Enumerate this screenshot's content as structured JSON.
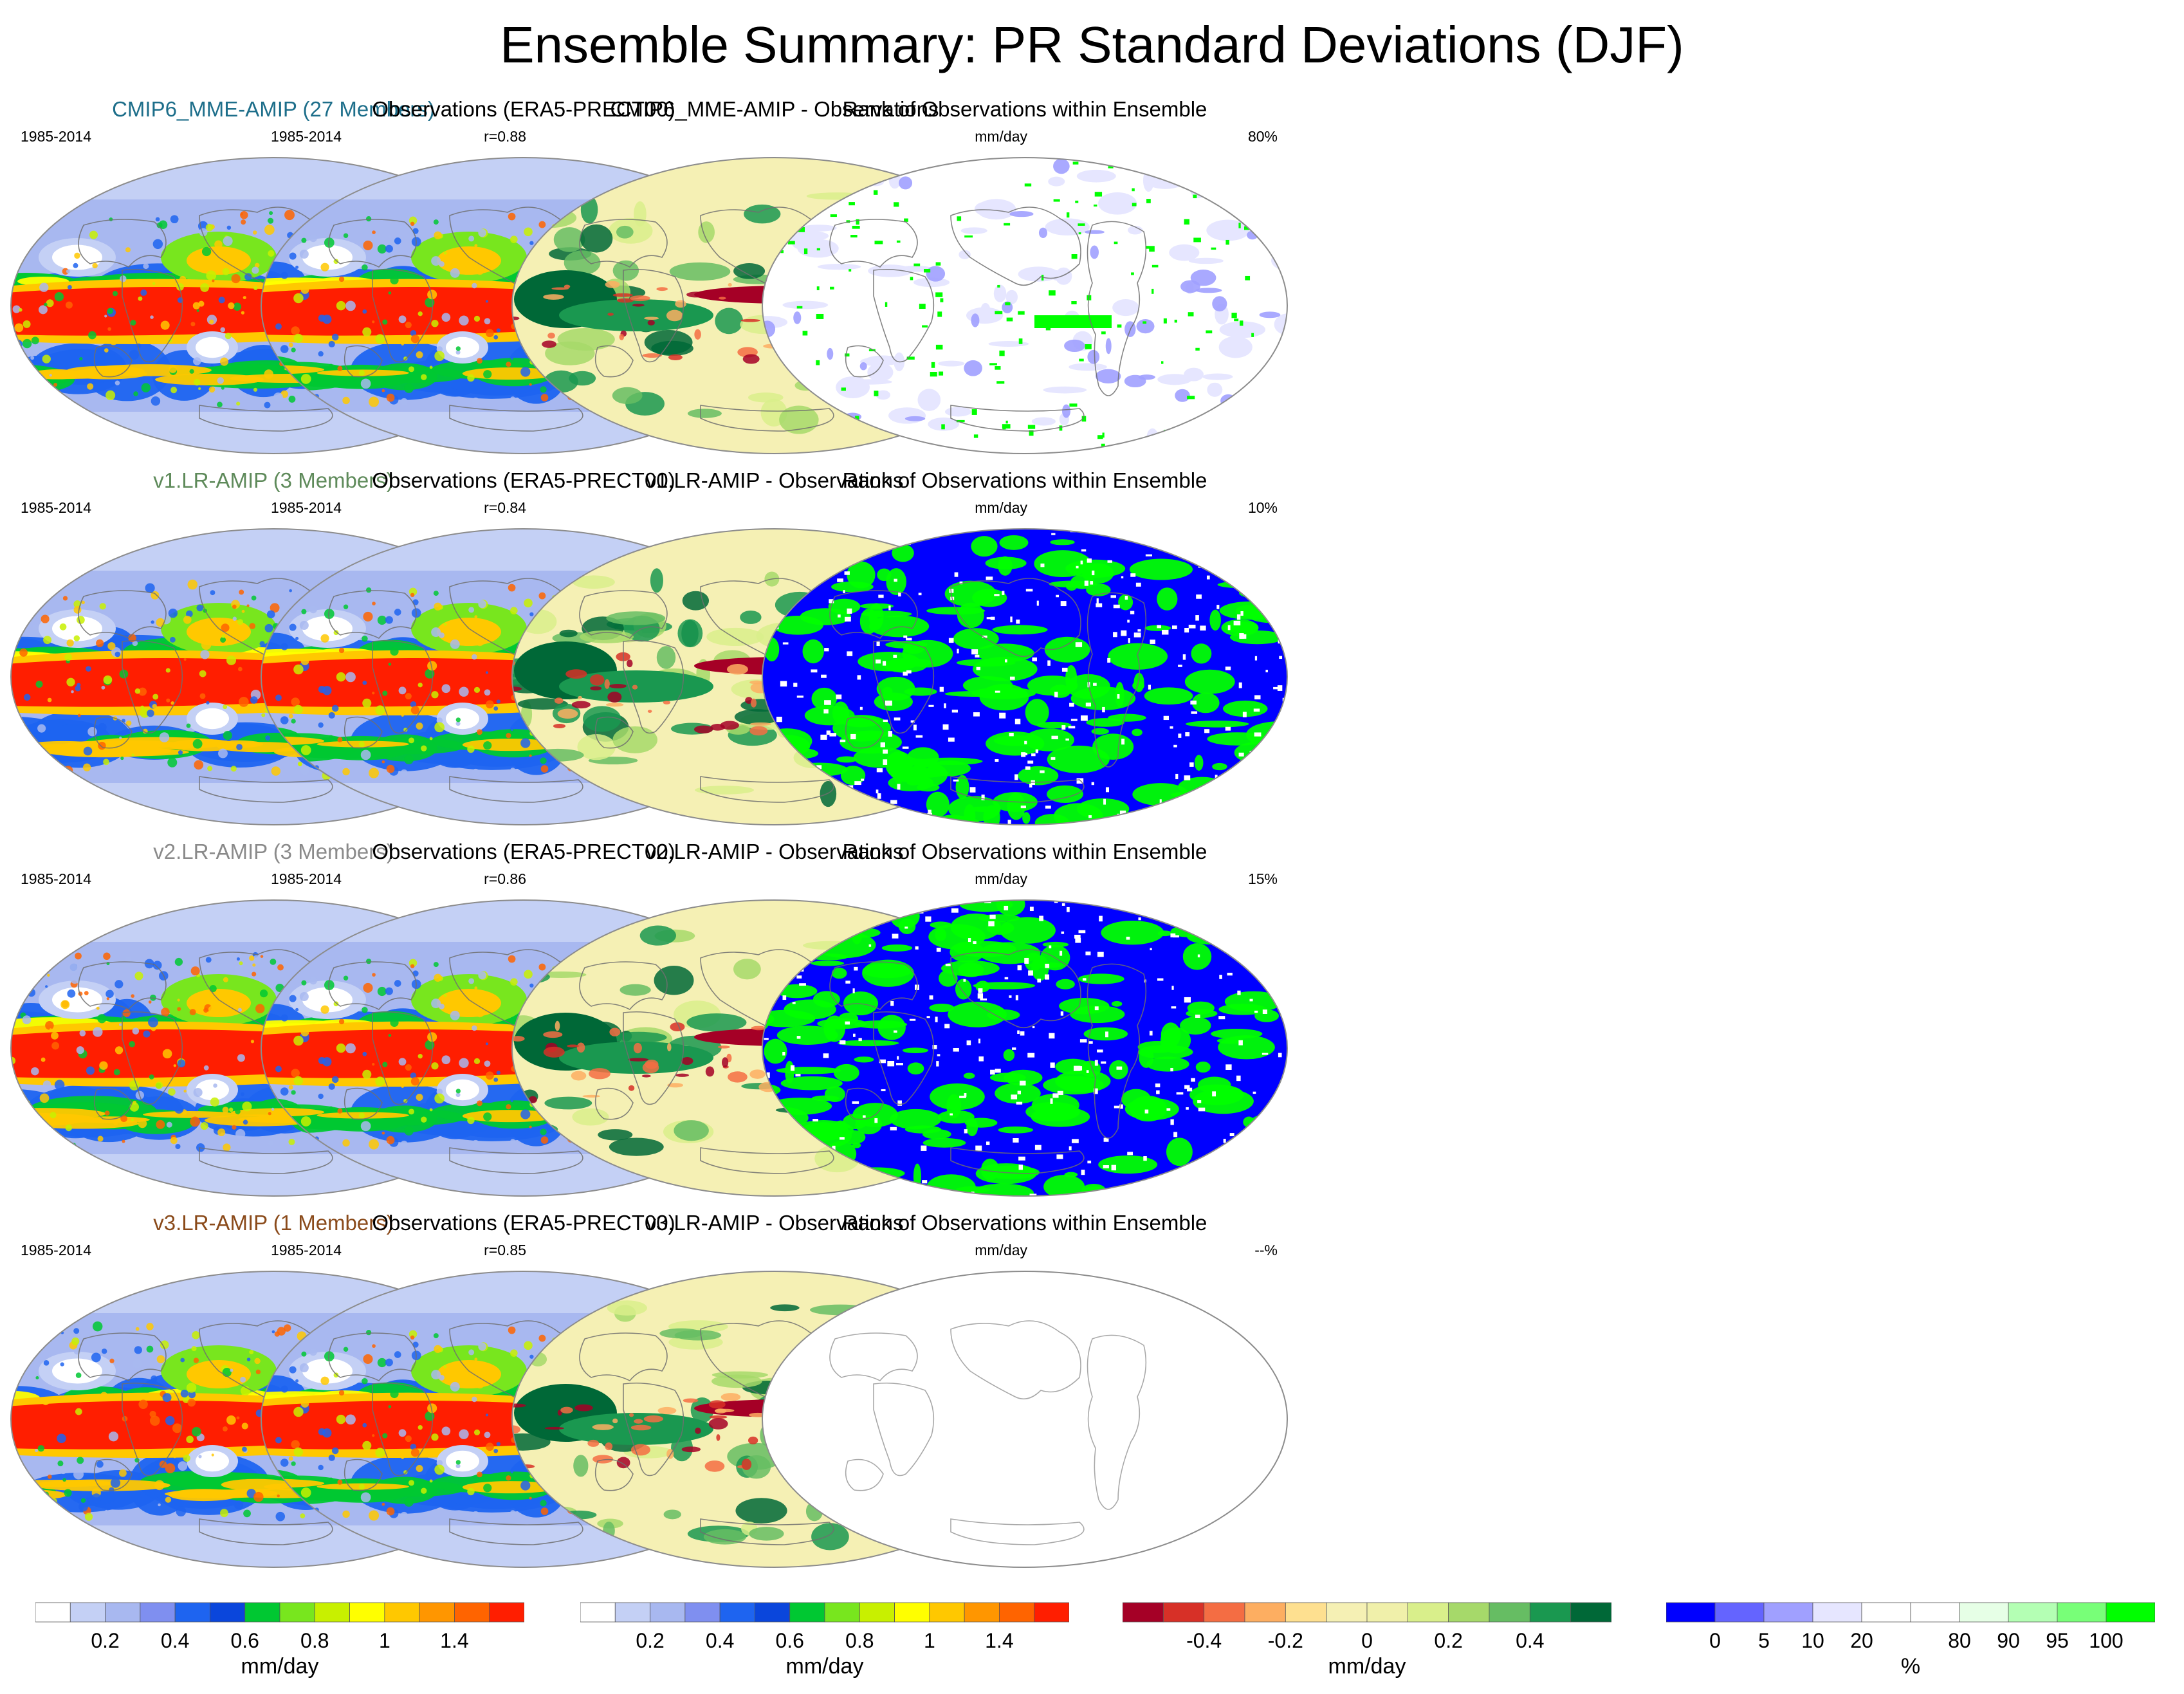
{
  "title": "Ensemble Summary: PR Standard Deviations (DJF)",
  "colors": {
    "cmip6": "#1d6e8a",
    "v1": "#5e8a5a",
    "v2": "#8a8a8a",
    "v3": "#8a4a1a"
  },
  "rows": [
    {
      "model": {
        "title": "CMIP6_MME-AMIP (27 Members)",
        "color_key": "cmip6",
        "period": "1985-2014",
        "corr": "r=0.88"
      },
      "obs": {
        "title": "Observations (ERA5-PRECT00)",
        "period": "1985-2014"
      },
      "diff": {
        "title": "CMIP6_MME-AMIP - Observations",
        "units": "mm/day"
      },
      "rank": {
        "title": "Rank of Observations within Ensemble",
        "percent": "80%",
        "style": "sparse"
      }
    },
    {
      "model": {
        "title": "v1.LR-AMIP (3 Members)",
        "color_key": "v1",
        "period": "1985-2014",
        "corr": "r=0.84"
      },
      "obs": {
        "title": "Observations (ERA5-PRECT00)",
        "period": "1985-2014"
      },
      "diff": {
        "title": "v1.LR-AMIP - Observations",
        "units": "mm/day"
      },
      "rank": {
        "title": "Rank of Observations within Ensemble",
        "percent": "10%",
        "style": "dense"
      }
    },
    {
      "model": {
        "title": "v2.LR-AMIP (3 Members)",
        "color_key": "v2",
        "period": "1985-2014",
        "corr": "r=0.86"
      },
      "obs": {
        "title": "Observations (ERA5-PRECT00)",
        "period": "1985-2014"
      },
      "diff": {
        "title": "v2.LR-AMIP - Observations",
        "units": "mm/day"
      },
      "rank": {
        "title": "Rank of Observations within Ensemble",
        "percent": "15%",
        "style": "dense"
      }
    },
    {
      "model": {
        "title": "v3.LR-AMIP (1 Members)",
        "color_key": "v3",
        "period": "1985-2014",
        "corr": "r=0.85"
      },
      "obs": {
        "title": "Observations (ERA5-PRECT00)",
        "period": "1985-2014"
      },
      "diff": {
        "title": "v3.LR-AMIP - Observations",
        "units": "mm/day"
      },
      "rank": {
        "title": "Rank of Observations within Ensemble",
        "percent": "--%",
        "style": "empty"
      }
    }
  ],
  "colorbars": {
    "model": {
      "units": "mm/day",
      "colors": [
        "#ffffff",
        "#c4d0f5",
        "#a8b8f0",
        "#7f8ff0",
        "#1e64f0",
        "#0a46dc",
        "#00c832",
        "#78e61e",
        "#c8f000",
        "#ffff00",
        "#ffc800",
        "#ff9600",
        "#ff6400",
        "#ff1e00"
      ],
      "labels": [
        "0.2",
        "0.4",
        "0.6",
        "0.8",
        "1",
        "1.4"
      ]
    },
    "obs": {
      "units": "mm/day",
      "colors": [
        "#ffffff",
        "#c4d0f5",
        "#a8b8f0",
        "#7f8ff0",
        "#1e64f0",
        "#0a46dc",
        "#00c832",
        "#78e61e",
        "#c8f000",
        "#ffff00",
        "#ffc800",
        "#ff9600",
        "#ff6400",
        "#ff1e00"
      ],
      "labels": [
        "0.2",
        "0.4",
        "0.6",
        "0.8",
        "1",
        "1.4"
      ]
    },
    "diff": {
      "units": "mm/day",
      "colors": [
        "#a50026",
        "#d73027",
        "#f46d43",
        "#fdae61",
        "#fee090",
        "#f5f0b4",
        "#f0f0aa",
        "#d9ef8b",
        "#a6d96a",
        "#66bd63",
        "#1a9850",
        "#006837"
      ],
      "labels": [
        "-0.4",
        "-0.2",
        "0",
        "0.2",
        "0.4"
      ]
    },
    "rank": {
      "units": "%",
      "colors": [
        "#0000ff",
        "#6464ff",
        "#a0a0ff",
        "#e6e6ff",
        "#ffffff",
        "#ffffff",
        "#e6ffe6",
        "#b4ffb4",
        "#78ff78",
        "#00ff00"
      ],
      "labels": [
        "0",
        "5",
        "10",
        "20",
        "80",
        "90",
        "95",
        "100"
      ]
    }
  }
}
